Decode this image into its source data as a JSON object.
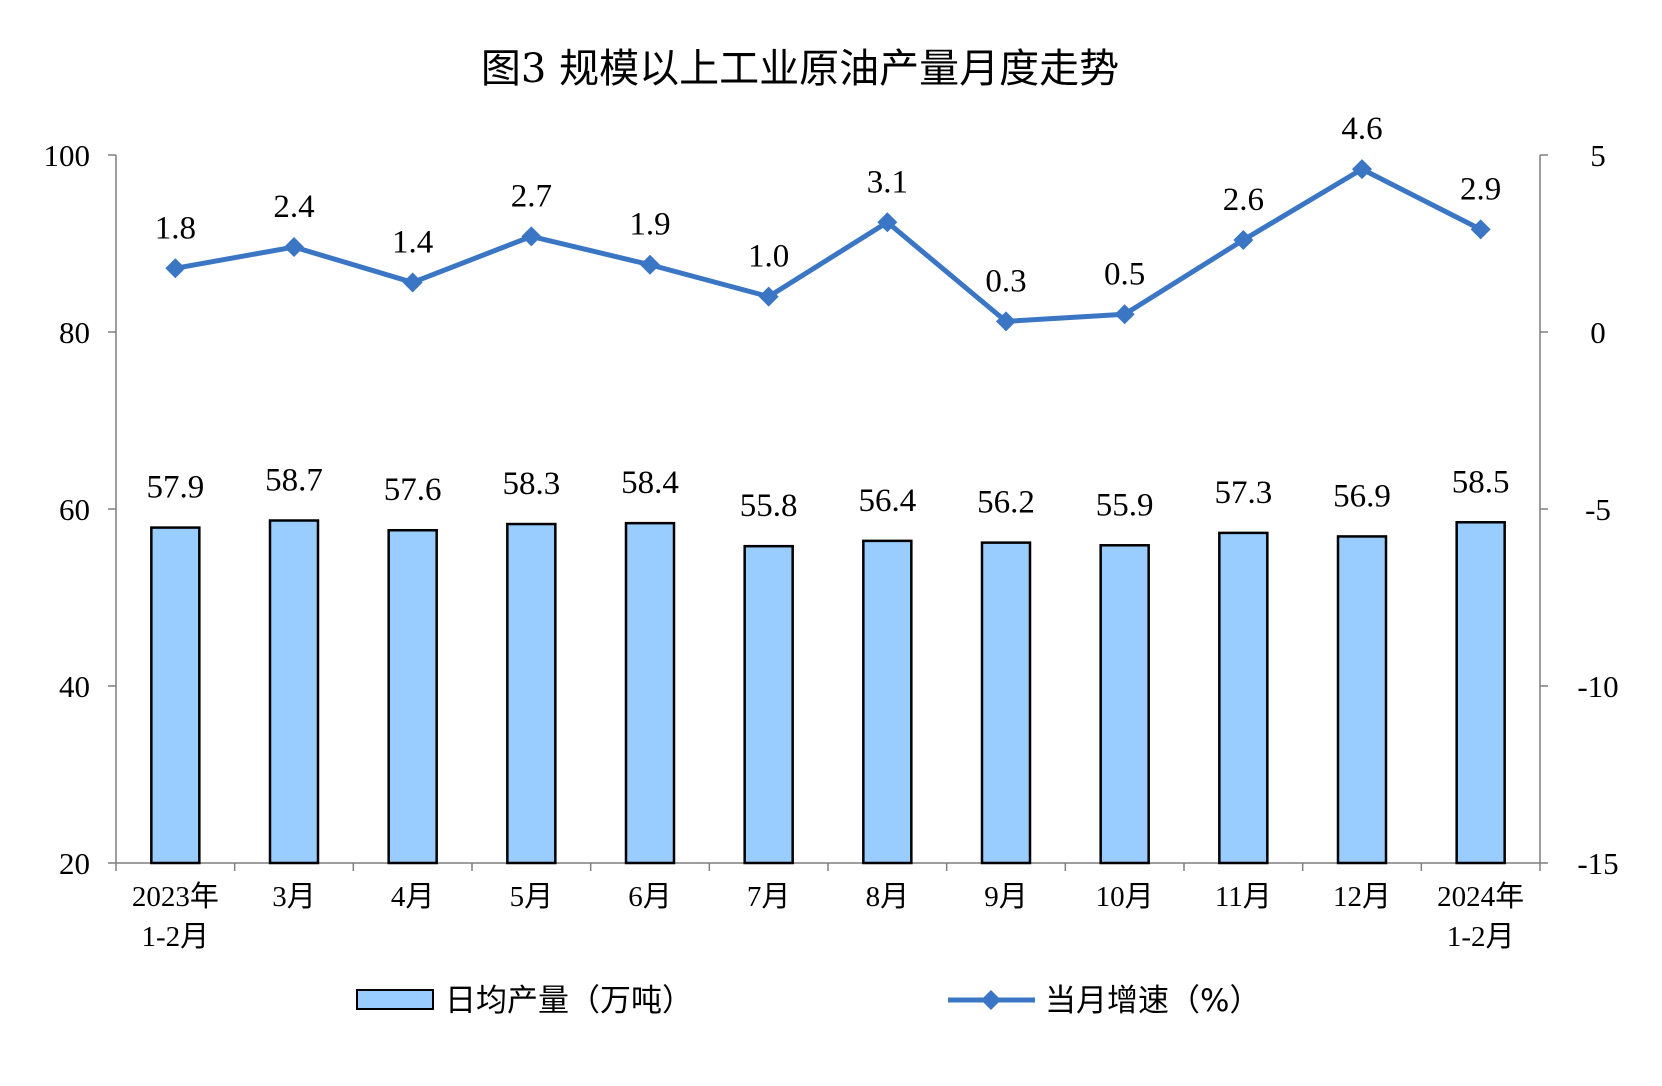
{
  "chart_data": {
    "type": "bar",
    "title": "图3 规模以上工业原油产量月度走势",
    "categories": [
      [
        "2023年",
        "1-2月"
      ],
      [
        "3月"
      ],
      [
        "4月"
      ],
      [
        "5月"
      ],
      [
        "6月"
      ],
      [
        "7月"
      ],
      [
        "8月"
      ],
      [
        "9月"
      ],
      [
        "10月"
      ],
      [
        "11月"
      ],
      [
        "12月"
      ],
      [
        "2024年",
        "1-2月"
      ]
    ],
    "series": [
      {
        "name": "日均产量（万吨）",
        "type": "bar",
        "axis": "left",
        "color": "#99CCFF",
        "values": [
          57.9,
          58.7,
          57.6,
          58.3,
          58.4,
          55.8,
          56.4,
          56.2,
          55.9,
          57.3,
          56.9,
          58.5
        ],
        "labels": [
          "57.9",
          "58.7",
          "57.6",
          "58.3",
          "58.4",
          "55.8",
          "56.4",
          "56.2",
          "55.9",
          "57.3",
          "56.9",
          "58.5"
        ]
      },
      {
        "name": "当月增速（%）",
        "type": "line",
        "axis": "right",
        "color": "#3A76C4",
        "values": [
          1.8,
          2.4,
          1.4,
          2.7,
          1.9,
          1.0,
          3.1,
          0.3,
          0.5,
          2.6,
          4.6,
          2.9
        ],
        "labels": [
          "1.8",
          "2.4",
          "1.4",
          "2.7",
          "1.9",
          "1.0",
          "3.1",
          "0.3",
          "0.5",
          "2.6",
          "4.6",
          "2.9"
        ]
      }
    ],
    "y_left": {
      "min": 20,
      "max": 100,
      "ticks": [
        "20",
        "40",
        "60",
        "80",
        "100"
      ]
    },
    "y_right": {
      "min": -15,
      "max": 5,
      "ticks": [
        "-15",
        "-10",
        "-5",
        "0",
        "5"
      ]
    },
    "grid": false,
    "legend_position": "bottom"
  }
}
